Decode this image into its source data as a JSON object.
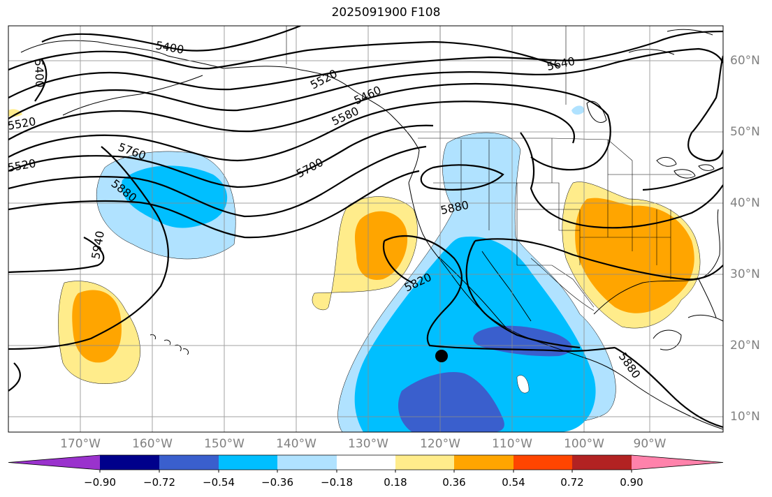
{
  "title": "2025091900 F108",
  "lat_labels": [
    "60°N",
    "50°N",
    "40°N",
    "30°N",
    "20°N",
    "10°N"
  ],
  "lon_labels": [
    "170°W",
    "160°W",
    "150°W",
    "140°W",
    "130°W",
    "120°W",
    "110°W",
    "100°W",
    "90°W"
  ],
  "contour_labels": [
    "5400",
    "5400",
    "5640",
    "5580",
    "5520",
    "5460",
    "5520",
    "5520",
    "5760",
    "5700",
    "5880",
    "5880",
    "5940",
    "5820",
    "5880"
  ],
  "colorbar": {
    "ticks": [
      "−0.90",
      "−0.72",
      "−0.54",
      "−0.36",
      "−0.18",
      "0.18",
      "0.36",
      "0.54",
      "0.72",
      "0.90"
    ],
    "colors": [
      "#9a32cd",
      "#00008b",
      "#3a5fcd",
      "#00bfff",
      "#b0e2ff",
      "#ffffff",
      "#ffec8b",
      "#ffa500",
      "#ff4500",
      "#b22222",
      "#ff82ab"
    ]
  },
  "fill_colors": {
    "light_blue": "#b0e2ff",
    "blue": "#00bfff",
    "dark_blue": "#3a5fcd",
    "yellow": "#ffec8b",
    "orange": "#ffa500"
  },
  "marker": "black-dot"
}
